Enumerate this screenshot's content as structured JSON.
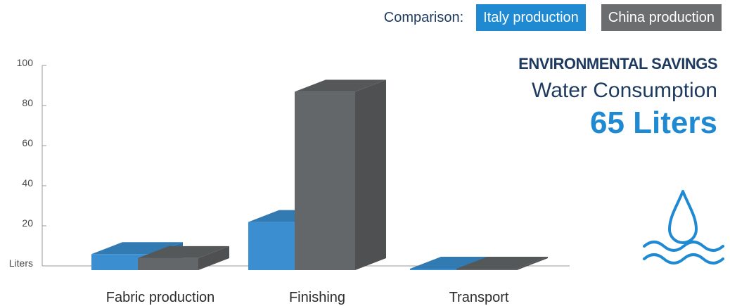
{
  "legend": {
    "label": "Comparison:",
    "italy_label": "Italy production",
    "china_label": "China production"
  },
  "info": {
    "kicker": "ENVIRONMENTAL SAVINGS",
    "metric": "Water Consumption",
    "value": "65 Liters",
    "icon": "water-drop-waves-icon"
  },
  "colors": {
    "italy": "#3b8fd1",
    "china": "#646769",
    "title": "#1f3a5f"
  },
  "chart_data": {
    "type": "bar",
    "categories": [
      "Fabric production",
      "Finishing",
      "Transport"
    ],
    "series": [
      {
        "name": "Italy production",
        "values": [
          8,
          24,
          0.3
        ]
      },
      {
        "name": "China production",
        "values": [
          6,
          89,
          0.5
        ]
      }
    ],
    "ylim": [
      0,
      100
    ],
    "yticks": [
      20,
      40,
      60,
      80,
      100
    ],
    "ylabel_at_zero": "Liters",
    "xlabel": "",
    "grid": false
  }
}
